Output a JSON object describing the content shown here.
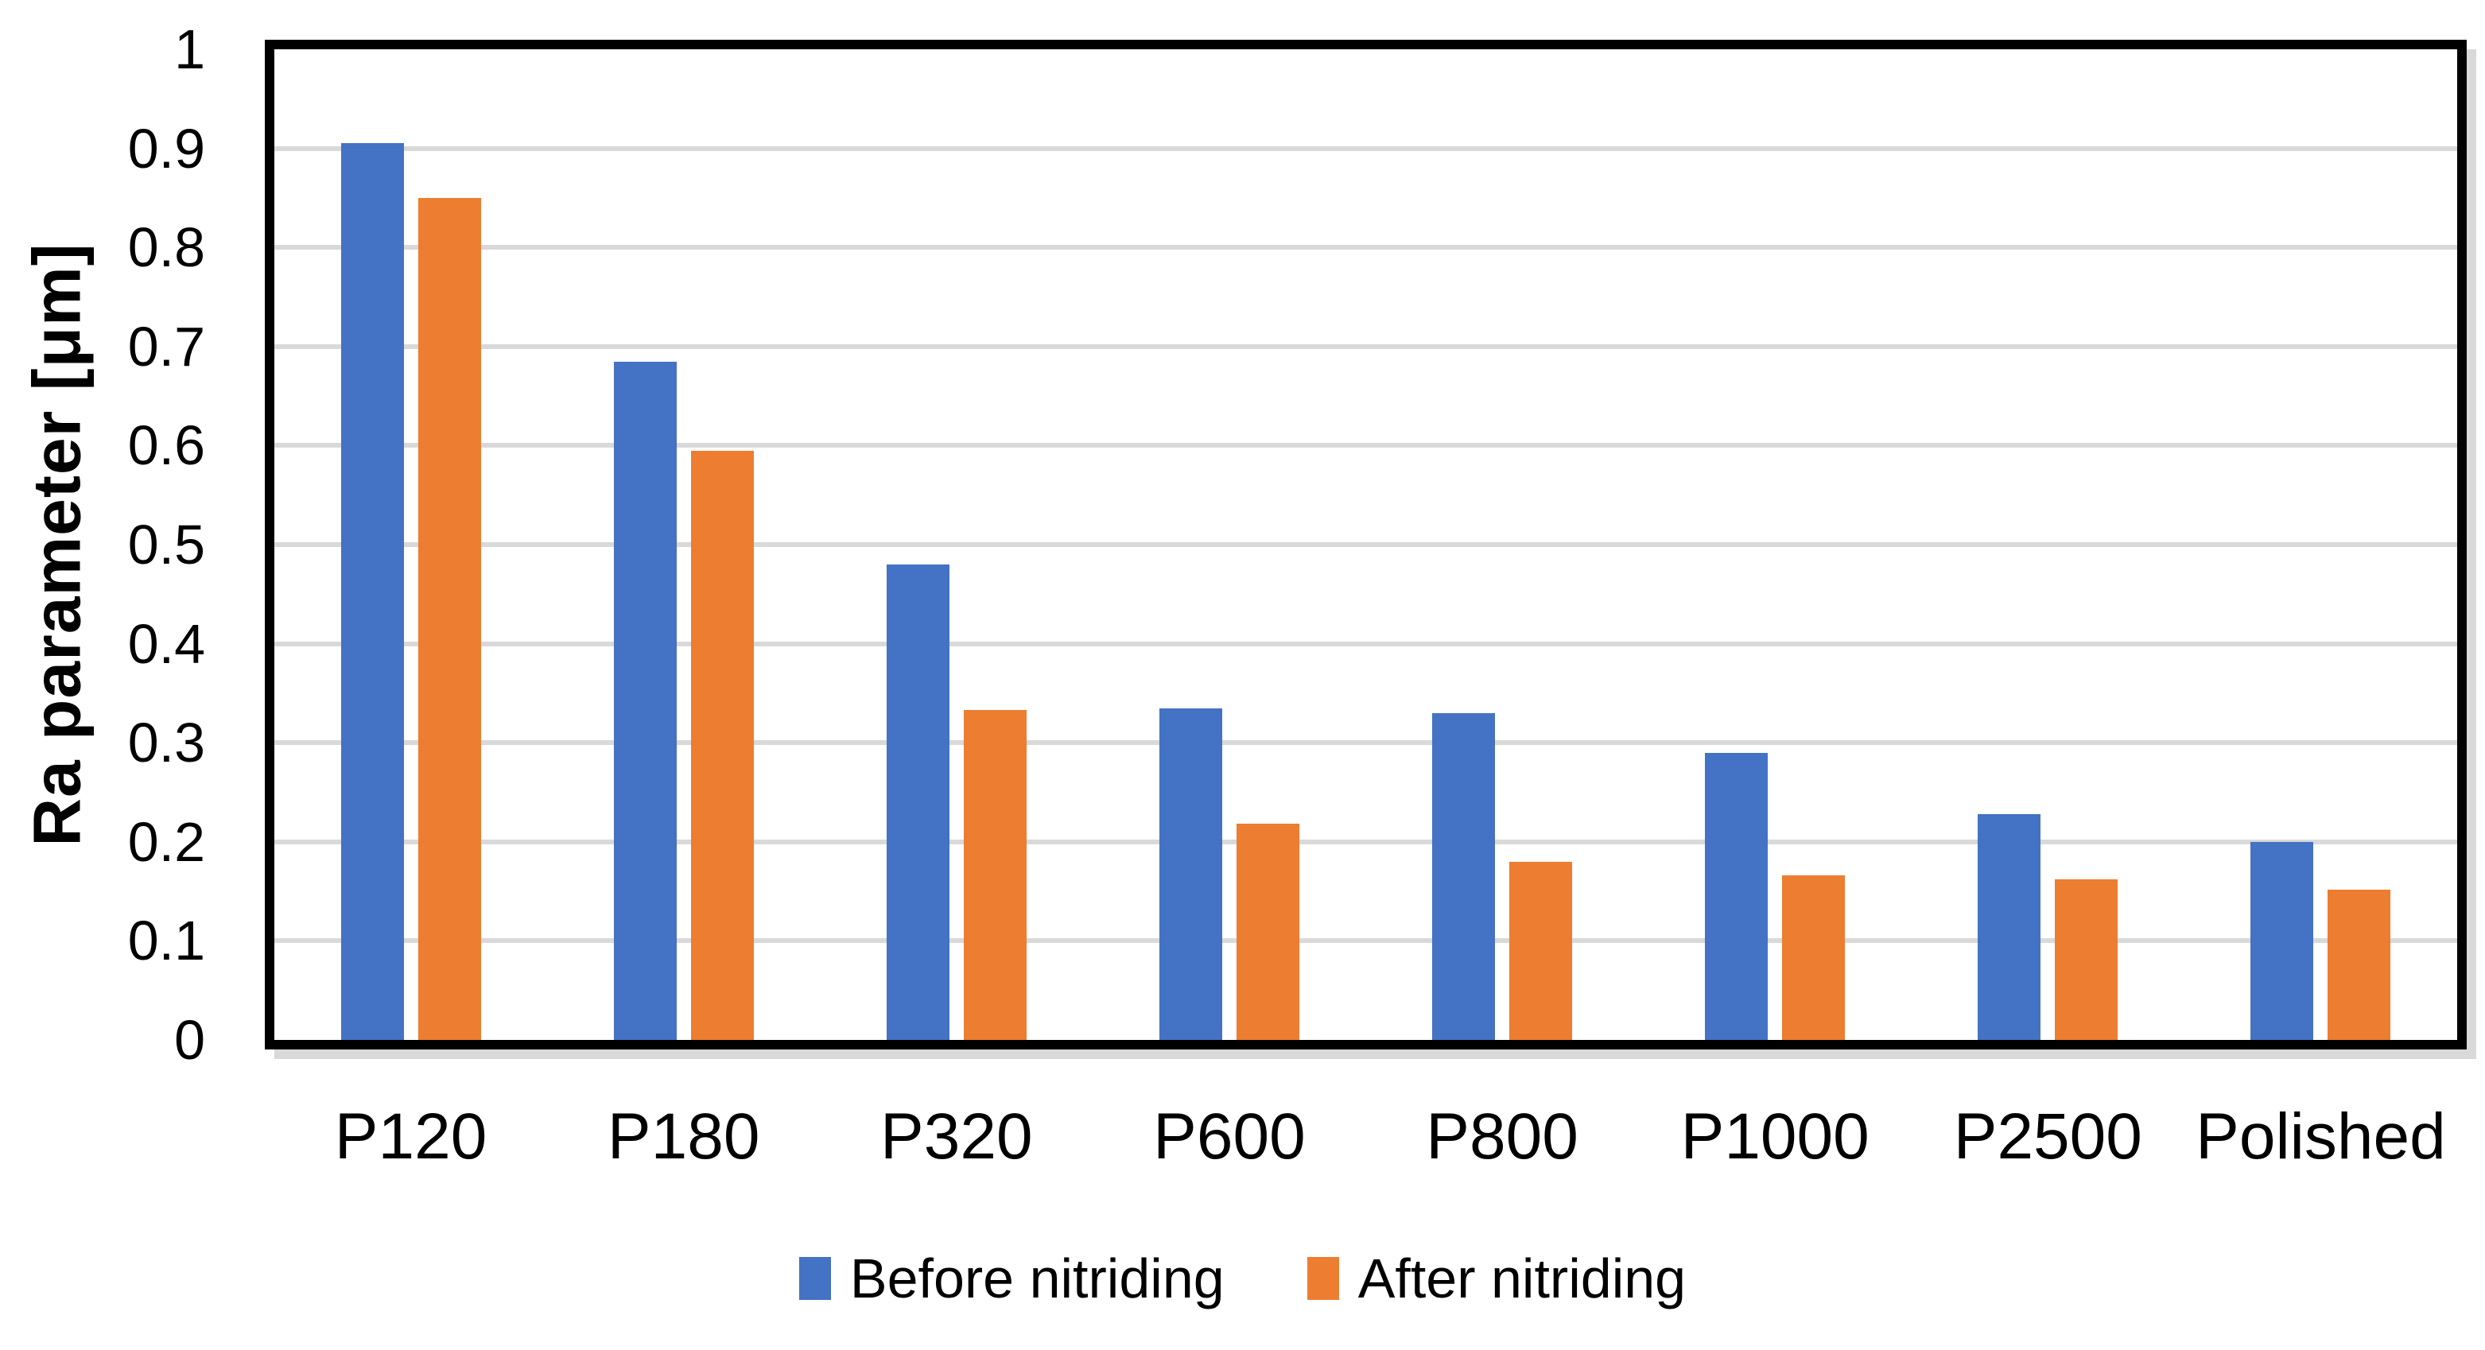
{
  "chart_data": {
    "type": "bar",
    "title": "",
    "categories": [
      "P120",
      "P180",
      "P320",
      "P600",
      "P800",
      "P1000",
      "P2500",
      "Polished"
    ],
    "series": [
      {
        "name": "Before nitriding",
        "color": "#4472C4",
        "values": [
          0.905,
          0.685,
          0.48,
          0.335,
          0.33,
          0.29,
          0.228,
          0.2
        ]
      },
      {
        "name": "After nitriding",
        "color": "#ED7D31",
        "values": [
          0.85,
          0.595,
          0.333,
          0.218,
          0.18,
          0.166,
          0.162,
          0.152
        ]
      }
    ],
    "xlabel": "",
    "ylabel": "Ra parameter [μm]",
    "ylim": [
      0,
      1
    ],
    "yticks": [
      0,
      0.1,
      0.2,
      0.3,
      0.4,
      0.5,
      0.6,
      0.7,
      0.8,
      0.9,
      1
    ],
    "ytick_labels": [
      "0",
      "0.1",
      "0.2",
      "0.3",
      "0.4",
      "0.5",
      "0.6",
      "0.7",
      "0.8",
      "0.9",
      "1"
    ],
    "grid": true,
    "gridline_color": "#d9d9d9",
    "plot_border_color": "#000000",
    "background_color": "#ffffff",
    "legend_position": "bottom"
  }
}
